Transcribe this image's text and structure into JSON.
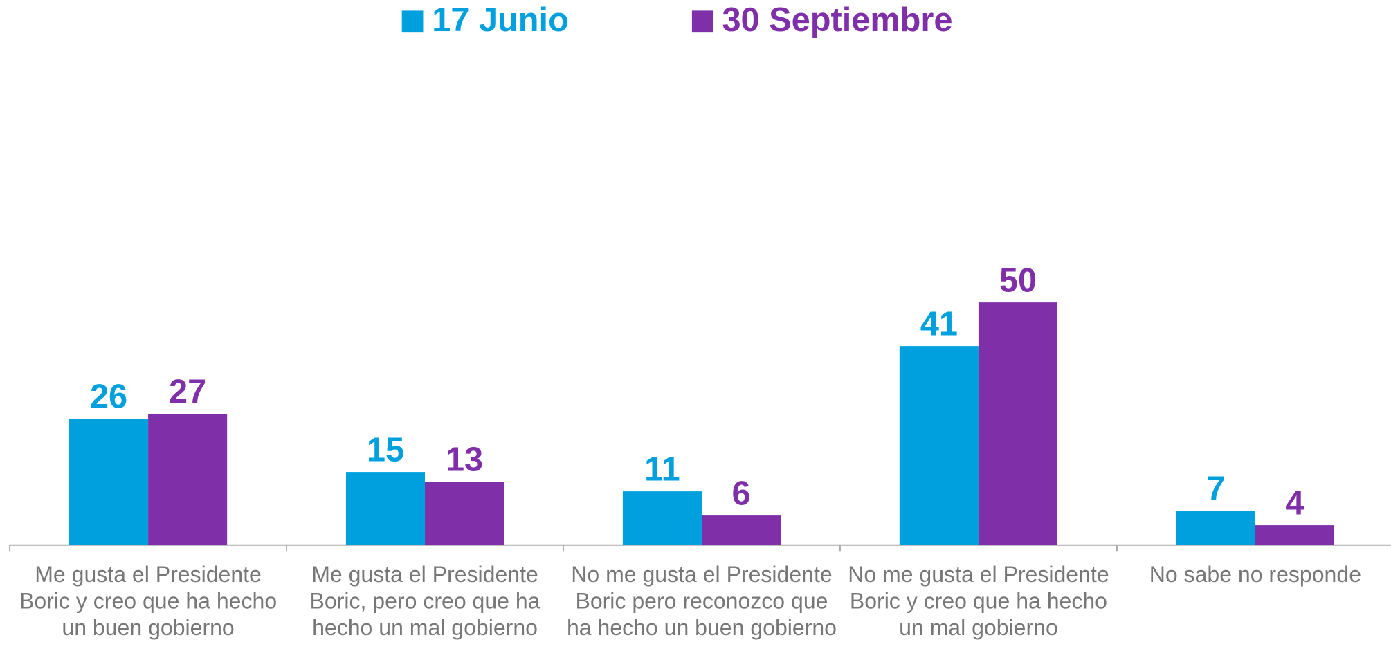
{
  "chart_data": {
    "type": "bar",
    "categories": [
      "Me gusta el Presidente Boric y creo que ha hecho un buen gobierno",
      "Me gusta el Presidente Boric, pero creo que ha hecho un mal gobierno",
      "No me gusta el Presidente Boric pero reconozco que ha hecho un buen gobierno",
      "No me gusta el Presidente Boric y creo que ha hecho un mal gobierno",
      "No sabe no responde"
    ],
    "series": [
      {
        "name": "17 Junio",
        "color": "#00a0df",
        "values": [
          26,
          15,
          11,
          41,
          7
        ]
      },
      {
        "name": "30 Septiembre",
        "color": "#7f2fa8",
        "values": [
          27,
          13,
          6,
          50,
          4
        ]
      }
    ],
    "ylim": [
      0,
      100
    ]
  }
}
